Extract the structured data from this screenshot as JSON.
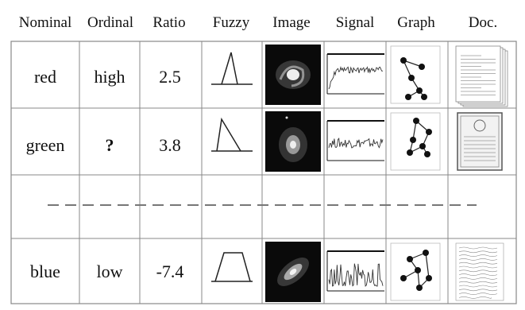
{
  "headers": {
    "nominal": "Nominal",
    "ordinal": "Ordinal",
    "ratio": "Ratio",
    "fuzzy": "Fuzzy",
    "image": "Image",
    "signal": "Signal",
    "graph": "Graph",
    "doc": "Doc."
  },
  "rows": [
    {
      "nominal": "red",
      "ordinal": "high",
      "ratio": "2.5",
      "fuzzy_shape": "triangle-narrow",
      "image": "spiral-galaxy",
      "graph": "network-a",
      "doc": "stacked-letters"
    },
    {
      "nominal": "green",
      "ordinal": "?",
      "ratio": "3.8",
      "fuzzy_shape": "triangle-wide",
      "image": "diffuse-galaxy",
      "graph": "network-b",
      "doc": "certificate"
    },
    {
      "nominal": "blue",
      "ordinal": "low",
      "ratio": "-7.4",
      "fuzzy_shape": "trapezoid",
      "image": "elliptical-galaxy",
      "graph": "network-c",
      "doc": "handwritten-letter"
    }
  ],
  "colors": {
    "grid": "#888888",
    "dashed": "#777777",
    "image_bg": "#0a0a0a"
  }
}
